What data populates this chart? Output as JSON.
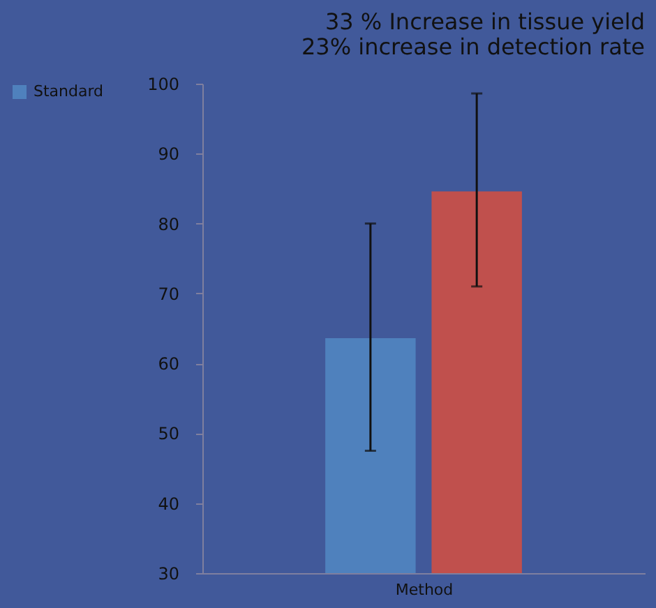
{
  "chart_data": {
    "type": "bar",
    "xlabel": "Method",
    "categories": [
      null
    ],
    "annotations": [
      "33 % Increase in tissue yield",
      "23% increase in detection rate"
    ],
    "series": [
      {
        "name": "Standard",
        "color": "#4f81bd",
        "values": [
          63.6
        ],
        "errors": [
          [
            47.5,
            80
          ]
        ]
      },
      {
        "color": "#c0504d",
        "values": [
          84.6
        ],
        "errors": [
          [
            71,
            98.6
          ]
        ]
      }
    ],
    "ylim": [
      30,
      100
    ],
    "yticks": [
      30,
      40,
      50,
      60,
      70,
      80,
      90,
      100
    ],
    "grid": false,
    "legend": "left"
  }
}
